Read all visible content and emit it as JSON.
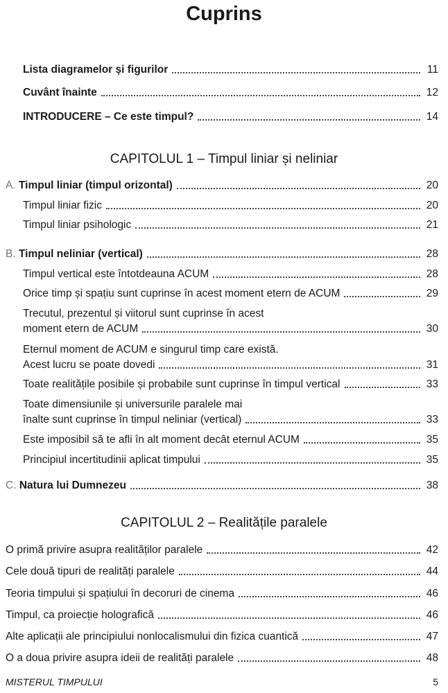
{
  "title": "Cuprins",
  "front": [
    {
      "text": "Lista diagramelor și figurilor",
      "page": "11"
    },
    {
      "text": "Cuvânt înainte",
      "page": "12"
    },
    {
      "text": "INTRODUCERE – Ce este timpul?",
      "page": "14"
    }
  ],
  "chapter1": {
    "heading": "CAPITOLUL 1 – Timpul liniar și neliniar",
    "A": {
      "prefix": "A.",
      "text": "Timpul liniar (timpul orizontal)",
      "page": "20"
    },
    "A_items": [
      {
        "text": "Timpul liniar fizic",
        "page": "20"
      },
      {
        "text": "Timpul liniar psihologic",
        "page": "21"
      }
    ],
    "B": {
      "prefix": "B.",
      "text": "Timpul neliniar (vertical)",
      "page": "28"
    },
    "B_items": [
      {
        "text": "Timpul vertical este întotdeauna ACUM",
        "page": "28"
      },
      {
        "text": "Orice timp și spațiu sunt cuprinse în acest moment etern de ACUM",
        "page": "29"
      },
      {
        "line1": "Trecutul, prezentul și viitorul sunt cuprinse în acest",
        "text": "moment etern de ACUM",
        "page": "30"
      },
      {
        "line1": "Eternul moment de ACUM e singurul timp care există.",
        "text": "Acest lucru se poate dovedi",
        "page": "31"
      },
      {
        "text": "Toate realitățile posibile și probabile sunt cuprinse în timpul vertical",
        "page": "33"
      },
      {
        "line1": "Toate dimensiunile și universurile paralele mai",
        "text": "înalte sunt cuprinse în timpul neliniar (vertical)",
        "page": "33"
      },
      {
        "text": "Este imposibil să te afli în alt moment decât eternul ACUM",
        "page": "35"
      },
      {
        "text": "Principiul incertitudinii aplicat timpului",
        "page": "35"
      }
    ],
    "C": {
      "prefix": "C.",
      "text": "Natura lui Dumnezeu",
      "page": "38"
    }
  },
  "chapter2": {
    "heading": "CAPITOLUL 2 – Realitățile paralele",
    "items": [
      {
        "text": "O primă privire asupra realităților paralele",
        "page": "42"
      },
      {
        "text": "Cele două tipuri de realități paralele",
        "page": "44"
      },
      {
        "text": "Teoria timpului și spațiului în decoruri de cinema",
        "page": "46"
      },
      {
        "text": "Timpul, ca proiecție holografică",
        "page": "46"
      },
      {
        "text": "Alte aplicații ale principiului nonlocalismului din fizica cuantică",
        "page": "47"
      },
      {
        "text": "O a doua privire asupra ideii de realități paralele",
        "page": "48"
      }
    ]
  },
  "footer": {
    "book_title": "MISTERUL TIMPULUI",
    "page_number": "5"
  }
}
